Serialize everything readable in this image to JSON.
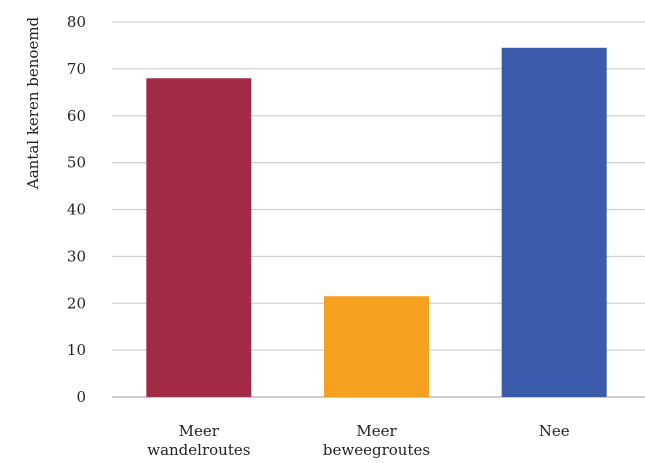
{
  "chart_data": {
    "type": "bar",
    "title": "",
    "xlabel": "",
    "ylabel": "Aantal keren benoemd",
    "ylim": [
      0,
      80
    ],
    "yticks": [
      0,
      10,
      20,
      30,
      40,
      50,
      60,
      70,
      80
    ],
    "grid": true,
    "legend": "none",
    "categories": [
      [
        "Meer",
        "wandelroutes"
      ],
      [
        "Meer",
        "beweegroutes"
      ],
      [
        "Nee"
      ]
    ],
    "values": [
      68,
      21.5,
      74.5
    ],
    "colors": [
      "#A32A45",
      "#F5A01F",
      "#3A5BAA"
    ]
  }
}
